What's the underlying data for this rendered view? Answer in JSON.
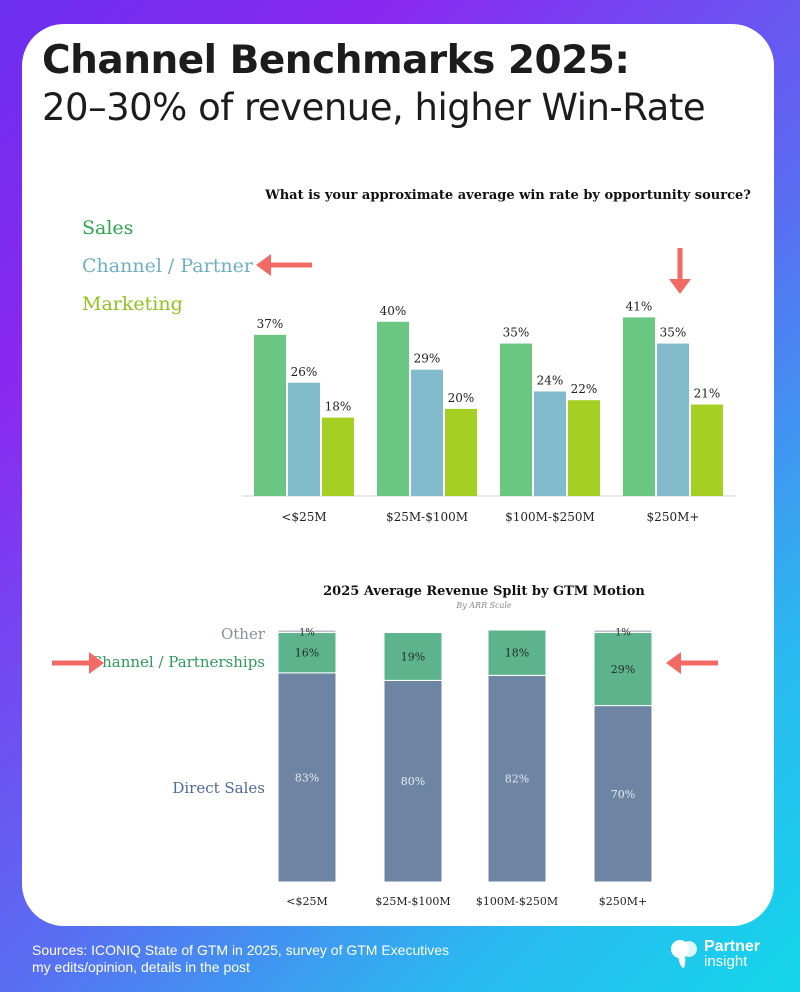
{
  "header": {
    "title_line1": "Channel Benchmarks 2025:",
    "title_line2": "20–30% of revenue, higher Win-Rate"
  },
  "chart_data": [
    {
      "type": "bar",
      "title": "What is your approximate average win rate by opportunity source?",
      "categories": [
        "<$25M",
        "$25M-$100M",
        "$100M-$250M",
        "$250M+"
      ],
      "series": [
        {
          "name": "Sales",
          "values": [
            37,
            40,
            35,
            41
          ],
          "labels": [
            "37%",
            "40%",
            "35%",
            "41%"
          ],
          "color": "#6ac782"
        },
        {
          "name": "Channel / Partner",
          "values": [
            26,
            29,
            24,
            35
          ],
          "labels": [
            "26%",
            "29%",
            "24%",
            "35%"
          ],
          "color": "#82bccc"
        },
        {
          "name": "Marketing",
          "values": [
            18,
            20,
            22,
            21
          ],
          "labels": [
            "18%",
            "20%",
            "22%",
            "21%"
          ],
          "color": "#a6cf23"
        }
      ],
      "ylim": [
        0,
        45
      ],
      "legend_colors": {
        "Sales": "#2ea64f",
        "Channel / Partner": "#6fb0c0",
        "Marketing": "#8fc31f"
      }
    },
    {
      "type": "bar",
      "stacked": true,
      "title": "2025 Average Revenue Split by GTM Motion",
      "subtitle": "By ARR Scale",
      "categories": [
        "<$25M",
        "$25M-$100M",
        "$100M-$250M",
        "$250M+"
      ],
      "series": [
        {
          "name": "Direct Sales",
          "values": [
            83,
            80,
            82,
            70
          ],
          "labels": [
            "83%",
            "80%",
            "82%",
            "70%"
          ],
          "color": "#6d84a3"
        },
        {
          "name": "Channel / Partnerships",
          "values": [
            16,
            19,
            18,
            29
          ],
          "labels": [
            "16%",
            "19%",
            "18%",
            "29%"
          ],
          "color": "#5db48c"
        },
        {
          "name": "Other",
          "values": [
            1,
            0,
            0,
            1
          ],
          "labels": [
            "1%",
            "",
            "",
            "1%"
          ],
          "color": "#b9c2cc"
        }
      ],
      "ylim": [
        0,
        100
      ],
      "legend_colors": {
        "Other": "#8a8f96",
        "Channel / Partnerships": "#2e9a5c",
        "Direct Sales": "#4f6b9c"
      }
    }
  ],
  "annotations": {
    "arrow_color": "#f26a64"
  },
  "footer": {
    "line1": "Sources: ICONIQ State of GTM in 2025, survey of GTM Executives",
    "line2": "my edits/opinion, details in the post"
  },
  "brand": {
    "name_line1": "Partner",
    "name_line2": "insight"
  }
}
